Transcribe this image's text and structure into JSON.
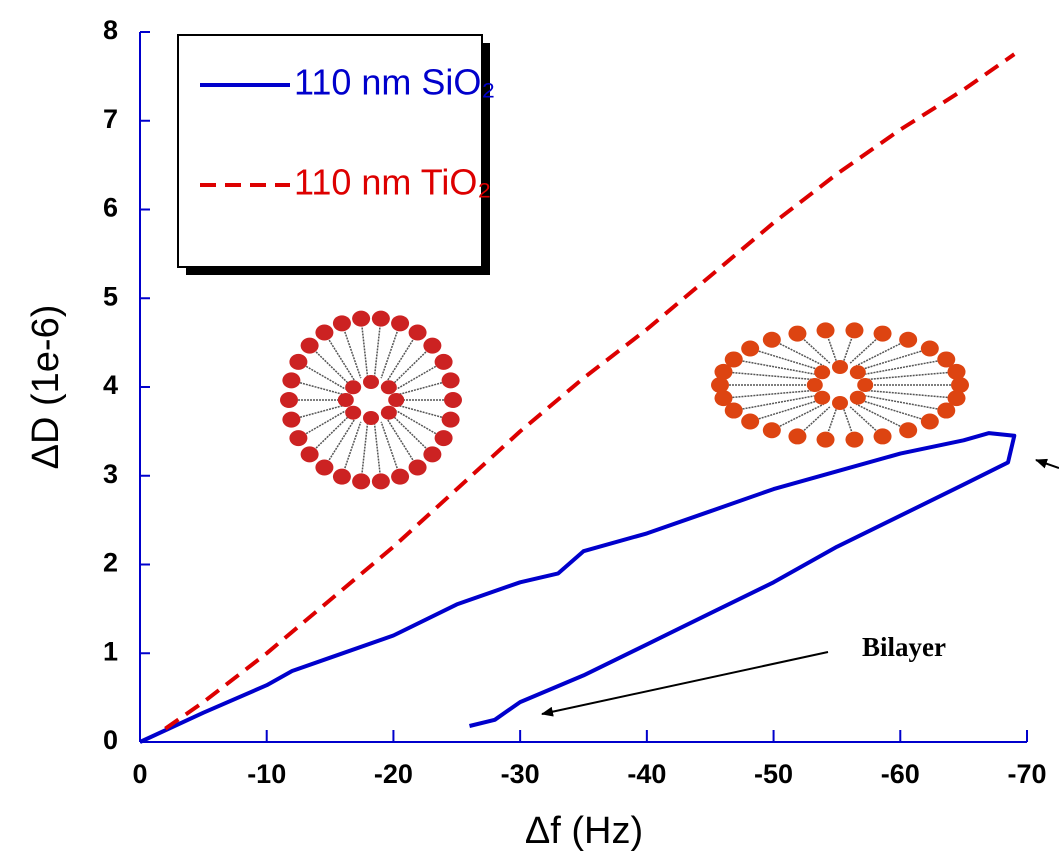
{
  "chart_data": {
    "type": "line",
    "xlabel": "Δf (Hz)",
    "ylabel": "ΔD (1e-6)",
    "xlim": [
      0,
      -70
    ],
    "ylim": [
      0,
      8
    ],
    "xticks": [
      0,
      -10,
      -20,
      -30,
      -40,
      -50,
      -60,
      -70
    ],
    "yticks": [
      0,
      1,
      2,
      3,
      4,
      5,
      6,
      7,
      8
    ],
    "axis_color": "#0000cc",
    "series": [
      {
        "name": "110 nm SiO₂",
        "color": "#0000cc",
        "line_style": "solid",
        "x": [
          0,
          -5,
          -10,
          -12,
          -15,
          -20,
          -25,
          -30,
          -33,
          -35,
          -40,
          -45,
          -50,
          -55,
          -60,
          -65,
          -67,
          -69,
          -68.5,
          -65,
          -60,
          -55,
          -50,
          -45,
          -40,
          -35,
          -30,
          -28,
          -26
        ],
        "values": [
          0,
          0.33,
          0.64,
          0.8,
          0.95,
          1.2,
          1.55,
          1.8,
          1.9,
          2.15,
          2.35,
          2.6,
          2.85,
          3.05,
          3.25,
          3.4,
          3.48,
          3.45,
          3.15,
          2.9,
          2.55,
          2.2,
          1.8,
          1.45,
          1.1,
          0.75,
          0.45,
          0.25,
          0.18
        ]
      },
      {
        "name": "110 nm TiO₂",
        "color": "#dd0000",
        "line_style": "dashed",
        "x": [
          -2,
          -5,
          -10,
          -15,
          -20,
          -25,
          -30,
          -35,
          -40,
          -45,
          -50,
          -55,
          -60,
          -65,
          -69
        ],
        "values": [
          0.15,
          0.45,
          1.0,
          1.6,
          2.2,
          2.85,
          3.5,
          4.1,
          4.65,
          5.25,
          5.85,
          6.4,
          6.9,
          7.35,
          7.75
        ]
      }
    ],
    "annotations": [
      {
        "text": "Bilayer"
      }
    ]
  }
}
